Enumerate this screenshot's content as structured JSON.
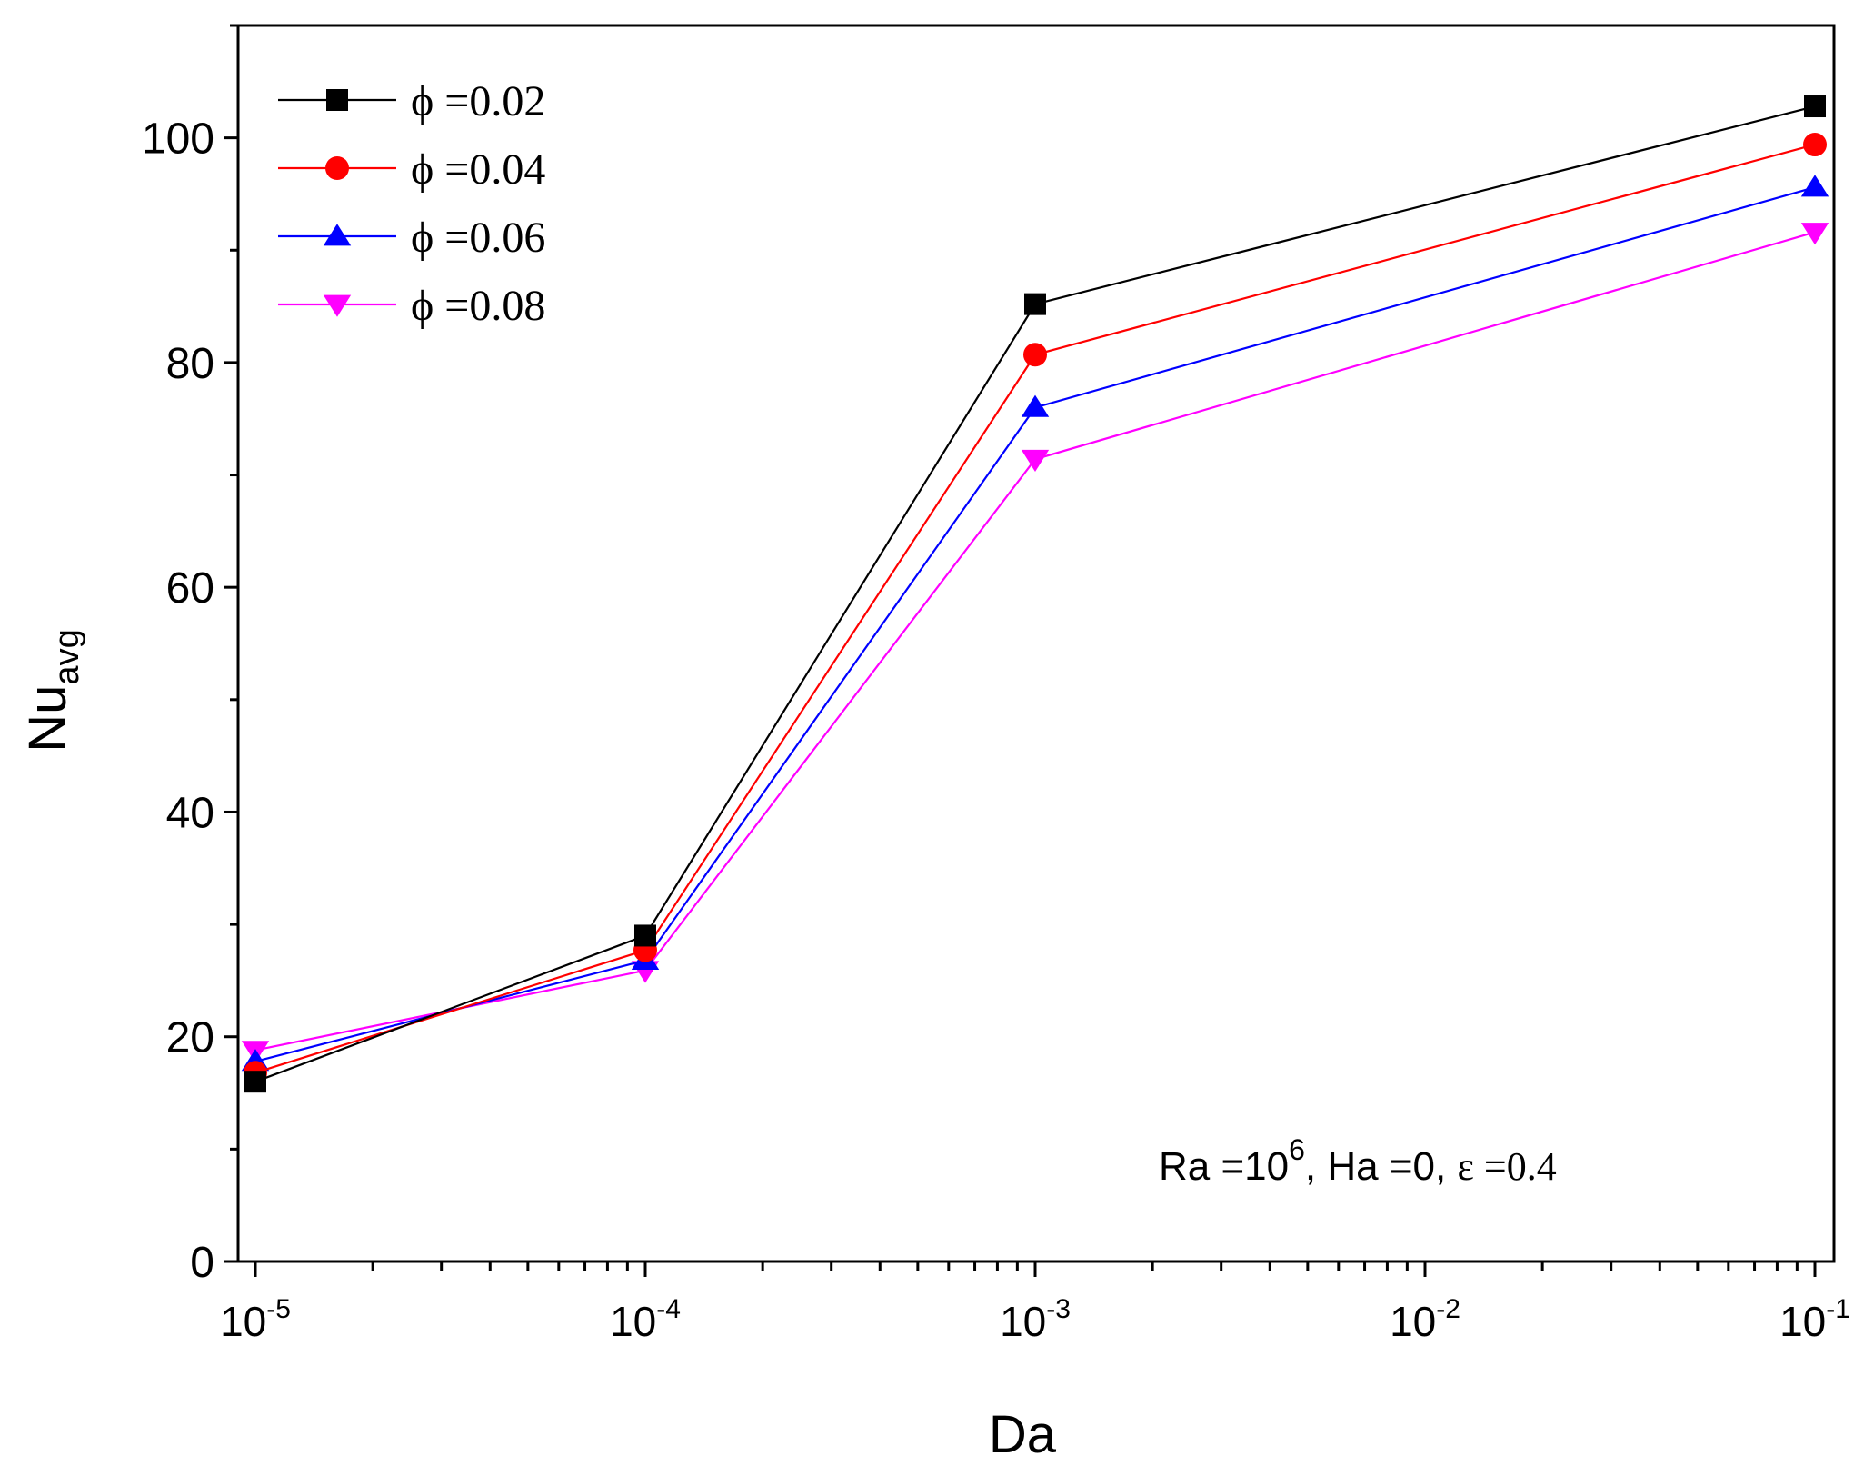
{
  "chart_data": {
    "type": "line",
    "xscale": "log",
    "x": [
      1e-05,
      0.0001,
      0.001,
      0.1
    ],
    "xlim": [
      1e-05,
      0.1
    ],
    "ylim": [
      0,
      110
    ],
    "xlabel": "Da",
    "ylabel": {
      "main": "Nu",
      "sub": "avg"
    },
    "y_ticks": [
      "0",
      "20",
      "40",
      "60",
      "80",
      "100"
    ],
    "x_ticks": [
      {
        "base": "10",
        "exp": "-5"
      },
      {
        "base": "10",
        "exp": "-4"
      },
      {
        "base": "10",
        "exp": "-3"
      },
      {
        "base": "10",
        "exp": "-2"
      },
      {
        "base": "10",
        "exp": "-1"
      }
    ],
    "series": [
      {
        "name": "ϕ =0.02",
        "color": "#000000",
        "marker": "square",
        "values": [
          16.0,
          29.0,
          85.2,
          102.8
        ]
      },
      {
        "name": "ϕ =0.04",
        "color": "#ff0000",
        "marker": "circle",
        "values": [
          16.8,
          27.7,
          80.7,
          99.4
        ]
      },
      {
        "name": "ϕ =0.06",
        "color": "#0000ff",
        "marker": "triangle-up",
        "values": [
          17.8,
          26.8,
          76.0,
          95.6
        ]
      },
      {
        "name": "ϕ =0.08",
        "color": "#ff00ff",
        "marker": "triangle-down",
        "values": [
          18.8,
          25.9,
          71.4,
          91.6
        ]
      }
    ],
    "annotation": {
      "ra": "Ra =10",
      "ra_exp": "6",
      "ha": ", Ha =0, ",
      "eps": "ε =0.4"
    },
    "legend_position": "top-left",
    "grid": false
  }
}
